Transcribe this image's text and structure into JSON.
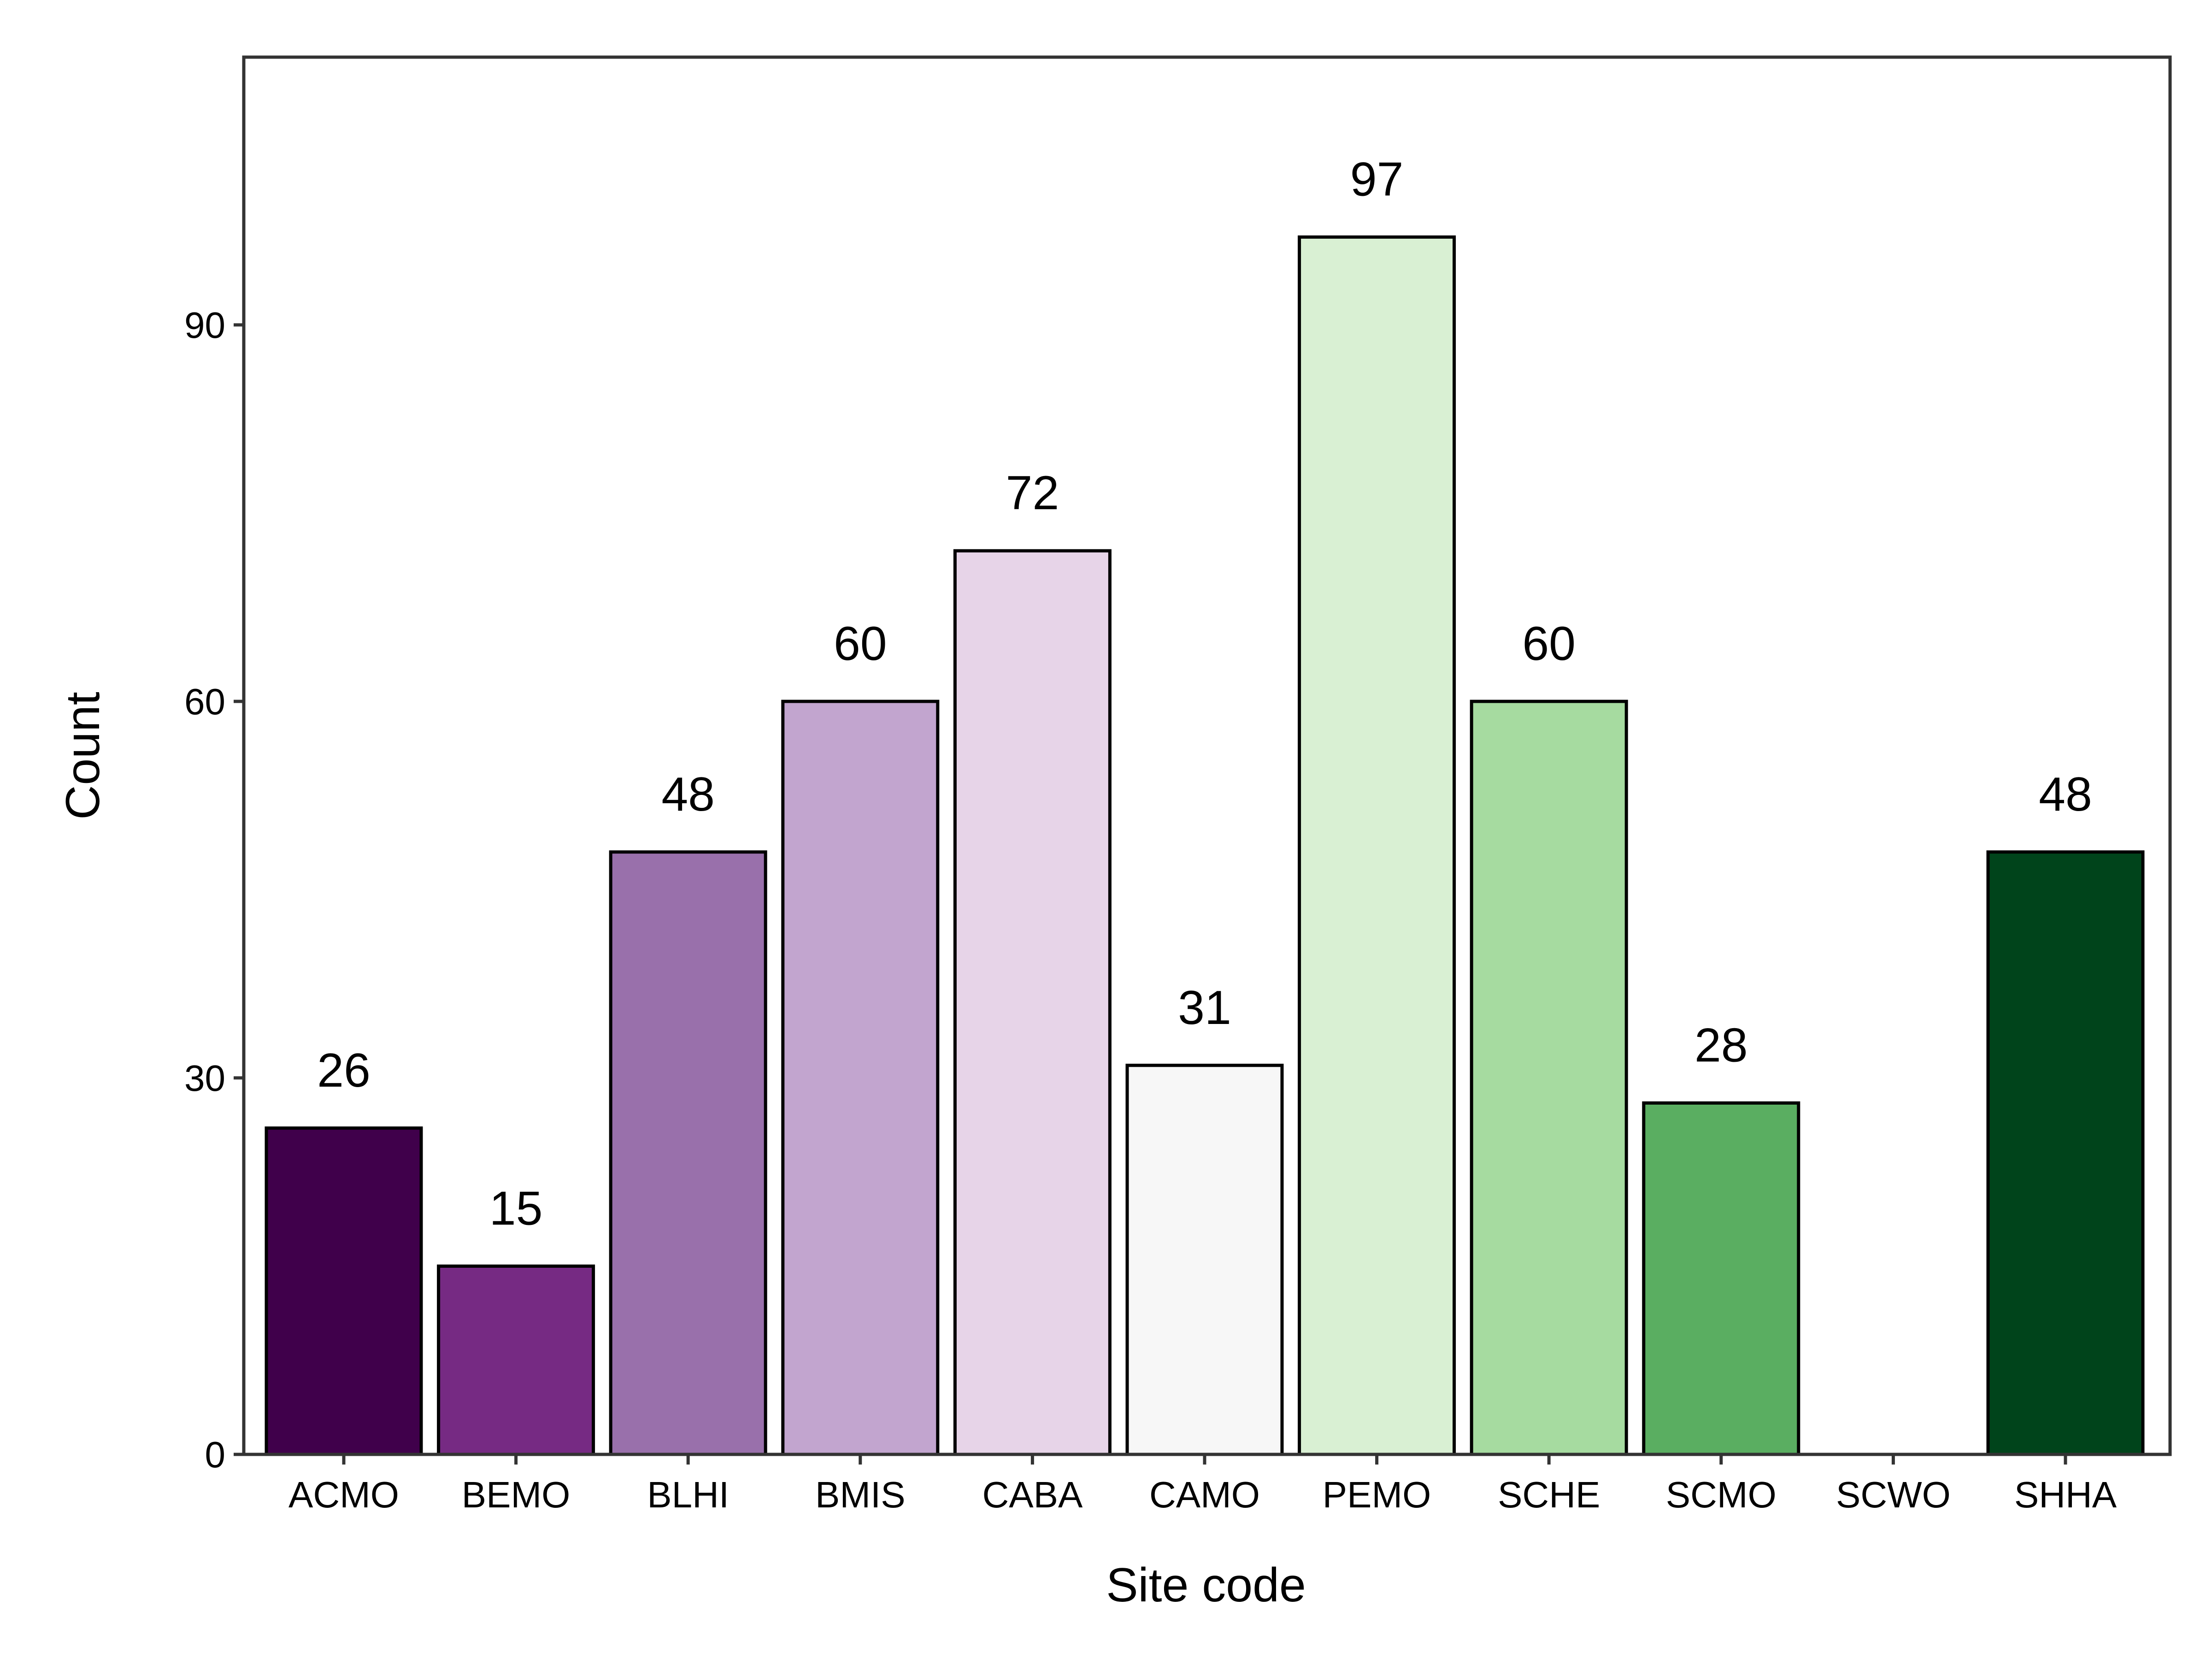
{
  "chart_data": {
    "type": "bar",
    "title": "",
    "xlabel": "Site code",
    "ylabel": "Count",
    "ylim": [
      0,
      111
    ],
    "yticks": [
      0,
      30,
      60,
      90
    ],
    "grid": false,
    "legend": "none",
    "categories": [
      "ACMO",
      "BEMO",
      "BLHI",
      "BMIS",
      "CABA",
      "CAMO",
      "PEMO",
      "SCHE",
      "SCMO",
      "SCWO",
      "SHHA"
    ],
    "values": [
      26,
      15,
      48,
      60,
      72,
      31,
      97,
      60,
      28,
      0,
      48
    ],
    "data_labels": [
      "26",
      "15",
      "48",
      "60",
      "72",
      "31",
      "97",
      "60",
      "28",
      "",
      "48"
    ],
    "colors": [
      "#40004b",
      "#762a83",
      "#9970ab",
      "#c2a5cf",
      "#e7d4e8",
      "#f7f7f7",
      "#d9f0d3",
      "#a6dba0",
      "#5aae61",
      "#1b7837",
      "#00441b"
    ]
  }
}
